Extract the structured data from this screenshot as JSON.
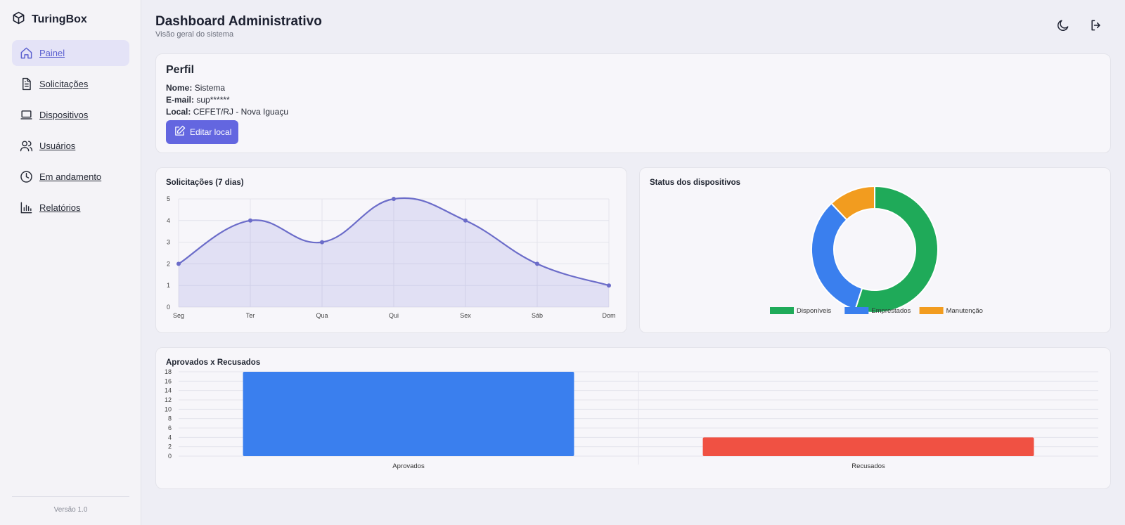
{
  "app": {
    "name": "TuringBox",
    "version": "Versão 1.0"
  },
  "sidebar": {
    "items": [
      {
        "label": "Painel",
        "icon": "home-icon",
        "active": true
      },
      {
        "label": "Solicitações",
        "icon": "document-icon"
      },
      {
        "label": "Dispositivos",
        "icon": "laptop-icon"
      },
      {
        "label": "Usuários",
        "icon": "users-icon"
      },
      {
        "label": "Em andamento",
        "icon": "clock-icon"
      },
      {
        "label": "Relatórios",
        "icon": "bar-chart-icon"
      }
    ]
  },
  "header": {
    "title": "Dashboard Administrativo",
    "subtitle": "Visão geral do sistema",
    "actions": [
      "moon-icon",
      "logout-icon"
    ]
  },
  "profile": {
    "title": "Perfil",
    "name_label": "Nome:",
    "name_value": "Sistema",
    "email_label": "E-mail:",
    "email_value": "sup******",
    "local_label": "Local:",
    "local_value": "CEFET/RJ - Nova Iguaçu",
    "edit_button": "Editar local"
  },
  "colors": {
    "accent": "#6366e0",
    "line": "#6b6cc9",
    "green": "#1faa59",
    "blue": "#3a7fee",
    "orange": "#f29c1f",
    "red": "#f05143"
  },
  "chart_data": [
    {
      "type": "line",
      "title": "Solicitações (7 dias)",
      "categories": [
        "Seg",
        "Ter",
        "Qua",
        "Qui",
        "Sex",
        "Sáb",
        "Dom"
      ],
      "values": [
        2,
        4,
        3,
        5,
        4,
        2,
        1
      ],
      "ylim": [
        0,
        5
      ],
      "yticks": [
        "0",
        "1",
        "2",
        "3",
        "4",
        "5"
      ],
      "grid": true,
      "fill": true
    },
    {
      "type": "pie",
      "title": "Status dos dispositivos",
      "labels": [
        "Disponíveis",
        "Emprestados",
        "Manutenção"
      ],
      "values": [
        55,
        33,
        12
      ],
      "colors": [
        "#1faa59",
        "#3a7fee",
        "#f29c1f"
      ],
      "legend": "bottom"
    },
    {
      "type": "bar",
      "title": "Aprovados x Recusados",
      "categories": [
        "Aprovados",
        "Recusados"
      ],
      "values": [
        18,
        4
      ],
      "colors": [
        "#3a7fee",
        "#f05143"
      ],
      "ylim": [
        0,
        18
      ],
      "yticks": [
        "0",
        "2",
        "4",
        "6",
        "8",
        "10",
        "12",
        "14",
        "16",
        "18"
      ]
    }
  ]
}
